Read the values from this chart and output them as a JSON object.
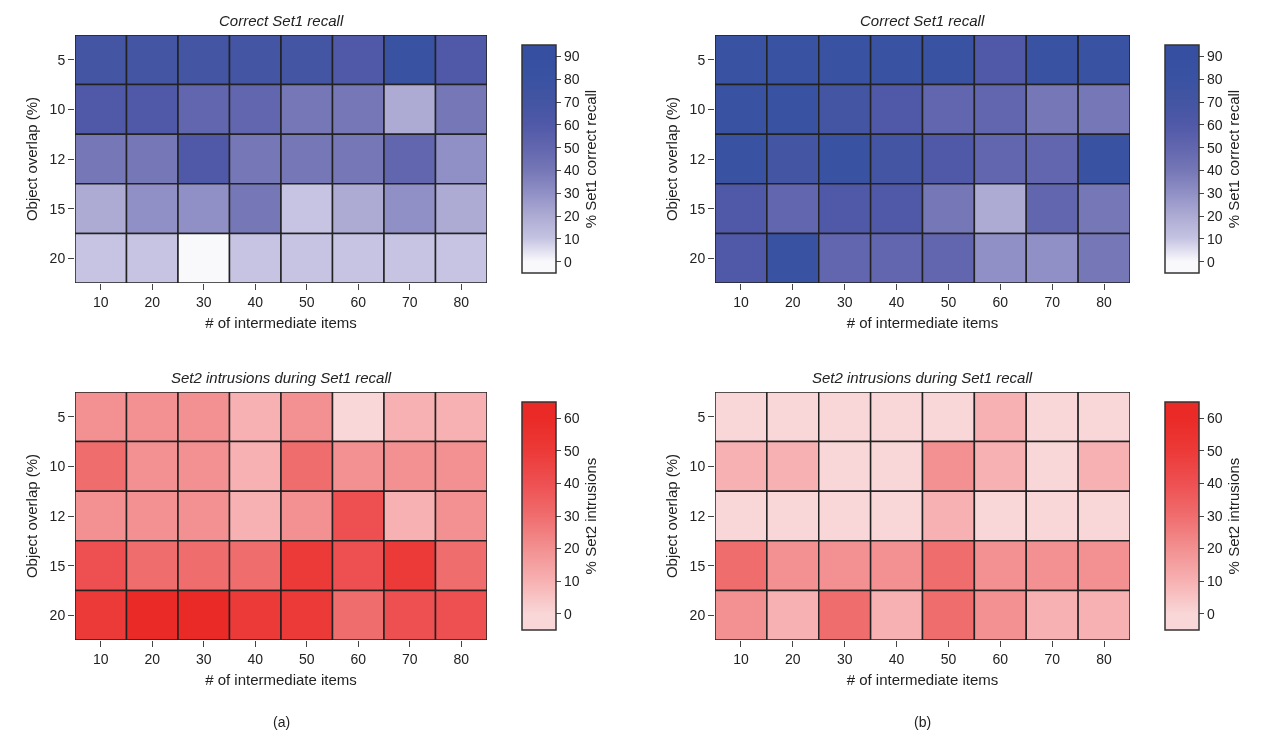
{
  "chart_data": [
    {
      "type": "heatmap",
      "title": "Correct Set1 recall",
      "xlabel": "# of intermediate items",
      "ylabel": "Object overlap (%)",
      "clabel": "% Set1 correct recall",
      "categories": [
        "10",
        "20",
        "30",
        "40",
        "50",
        "60",
        "70",
        "80"
      ],
      "y_categories": [
        "5",
        "10",
        "12",
        "15",
        "20"
      ],
      "cells": [
        [
          70,
          70,
          70,
          70,
          70,
          60,
          80,
          60
        ],
        [
          60,
          60,
          50,
          50,
          40,
          40,
          20,
          40
        ],
        [
          40,
          40,
          60,
          40,
          40,
          40,
          50,
          30
        ],
        [
          20,
          30,
          30,
          40,
          10,
          20,
          30,
          20
        ],
        [
          10,
          10,
          0,
          10,
          10,
          10,
          10,
          10
        ]
      ],
      "clim": [
        -5,
        95
      ],
      "cticks": [
        0,
        10,
        20,
        30,
        40,
        50,
        60,
        70,
        80,
        90
      ],
      "colors": [
        "#f9f9fc",
        "#c6c4e2",
        "#adabd3",
        "#9190c6",
        "#7577b6",
        "#6266ae",
        "#5059a8",
        "#4355a3",
        "#3a52a2",
        "#364fa0"
      ]
    },
    {
      "type": "heatmap",
      "title": "Correct Set1 recall",
      "xlabel": "# of intermediate items",
      "ylabel": "Object overlap (%)",
      "clabel": "% Set1 correct recall",
      "categories": [
        "10",
        "20",
        "30",
        "40",
        "50",
        "60",
        "70",
        "80"
      ],
      "y_categories": [
        "5",
        "10",
        "12",
        "15",
        "20"
      ],
      "cells": [
        [
          80,
          80,
          80,
          80,
          80,
          60,
          80,
          80
        ],
        [
          80,
          80,
          70,
          60,
          50,
          50,
          40,
          40
        ],
        [
          80,
          70,
          80,
          70,
          60,
          50,
          50,
          80
        ],
        [
          60,
          50,
          60,
          60,
          40,
          20,
          50,
          40
        ],
        [
          60,
          80,
          50,
          50,
          50,
          30,
          30,
          40
        ]
      ],
      "clim": [
        -5,
        95
      ],
      "cticks": [
        0,
        10,
        20,
        30,
        40,
        50,
        60,
        70,
        80,
        90
      ],
      "colors": [
        "#f9f9fc",
        "#c6c4e2",
        "#adabd3",
        "#9190c6",
        "#7577b6",
        "#6266ae",
        "#5059a8",
        "#4355a3",
        "#3a52a2",
        "#364fa0"
      ]
    },
    {
      "type": "heatmap",
      "title": "Set2 intrusions during Set1 recall",
      "xlabel": "# of intermediate items",
      "ylabel": "Object overlap (%)",
      "clabel": "% Set2 intrusions",
      "categories": [
        "10",
        "20",
        "30",
        "40",
        "50",
        "60",
        "70",
        "80"
      ],
      "y_categories": [
        "5",
        "10",
        "12",
        "15",
        "20"
      ],
      "cells": [
        [
          20,
          20,
          20,
          10,
          20,
          0,
          10,
          10
        ],
        [
          30,
          20,
          20,
          10,
          30,
          20,
          20,
          20
        ],
        [
          20,
          20,
          20,
          10,
          20,
          40,
          10,
          20
        ],
        [
          40,
          30,
          30,
          30,
          50,
          40,
          50,
          30
        ],
        [
          50,
          60,
          60,
          50,
          50,
          30,
          40,
          40
        ]
      ],
      "clim": [
        -5,
        65
      ],
      "cticks": [
        0,
        10,
        20,
        30,
        40,
        50,
        60
      ],
      "colors": [
        "#f9d6d7",
        "#f7b1b2",
        "#f39091",
        "#f06d6e",
        "#ee5052",
        "#ec3a38",
        "#ea2a27"
      ],
      "annotations": [
        "(a)"
      ]
    },
    {
      "type": "heatmap",
      "title": "Set2 intrusions during Set1 recall",
      "xlabel": "# of intermediate items",
      "ylabel": "Object overlap (%)",
      "clabel": "% Set2 intrusions",
      "categories": [
        "10",
        "20",
        "30",
        "40",
        "50",
        "60",
        "70",
        "80"
      ],
      "y_categories": [
        "5",
        "10",
        "12",
        "15",
        "20"
      ],
      "cells": [
        [
          0,
          0,
          0,
          0,
          0,
          10,
          0,
          0
        ],
        [
          10,
          10,
          0,
          0,
          20,
          10,
          0,
          10
        ],
        [
          0,
          0,
          0,
          0,
          10,
          0,
          0,
          0
        ],
        [
          30,
          20,
          20,
          20,
          30,
          20,
          20,
          20
        ],
        [
          20,
          10,
          30,
          10,
          30,
          20,
          10,
          10
        ]
      ],
      "clim": [
        -5,
        65
      ],
      "cticks": [
        0,
        10,
        20,
        30,
        40,
        50,
        60
      ],
      "colors": [
        "#f9d6d7",
        "#f7b1b2",
        "#f39091",
        "#f06d6e",
        "#ee5052",
        "#ec3a38",
        "#ea2a27"
      ],
      "annotations": [
        "(b)"
      ]
    }
  ]
}
